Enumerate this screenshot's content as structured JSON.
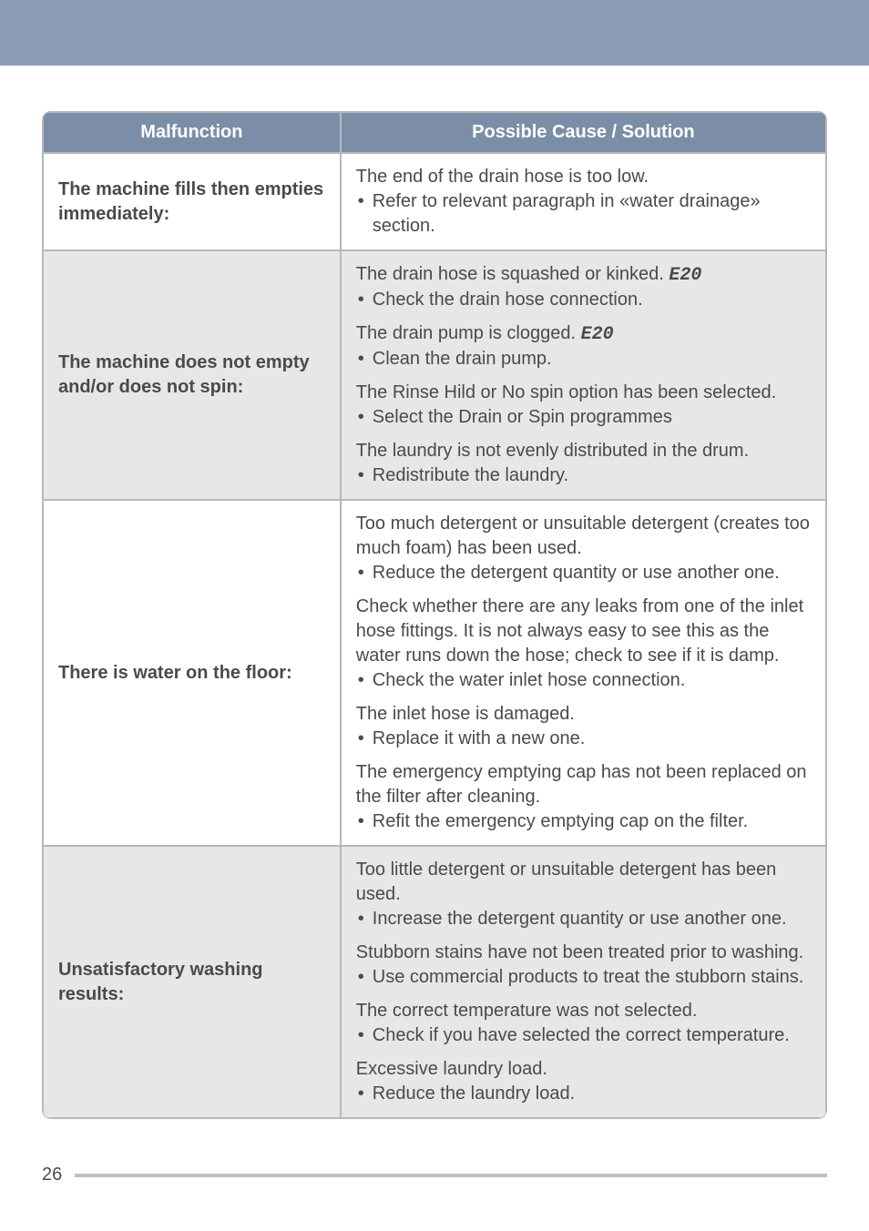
{
  "banner": {
    "bg_color": "#8a9bb5"
  },
  "table": {
    "header_bg": "#7c8da8",
    "header_text_color": "#ffffff",
    "border_color": "#b8b8b8",
    "row_alt_bg": "#e7e7e7",
    "text_color": "#4a4a4a",
    "font_size": 20,
    "headers": {
      "malfunction": "Malfunction",
      "solution": "Possible Cause / Solution"
    },
    "rows": [
      {
        "shaded": false,
        "malfunction": "The machine fills then empties immediately:",
        "blocks": [
          {
            "cause": "The end of the drain hose is too low.",
            "bullets": [
              "Refer to relevant paragraph in «water drainage» section."
            ]
          }
        ]
      },
      {
        "shaded": true,
        "malfunction": "The machine does not empty and/or does not spin:",
        "blocks": [
          {
            "cause_prefix": "The drain hose is squashed or kinked. ",
            "cause_code": "E20",
            "bullets": [
              "Check the drain hose connection."
            ]
          },
          {
            "cause_prefix": "The drain pump is clogged. ",
            "cause_code": "E20",
            "bullets": [
              "Clean the drain pump."
            ]
          },
          {
            "cause": "The Rinse Hild or No spin option has been selected.",
            "bullets": [
              "Select the Drain or Spin programmes"
            ]
          },
          {
            "cause": "The laundry is not evenly distributed in the drum.",
            "bullets": [
              "Redistribute the laundry."
            ]
          }
        ]
      },
      {
        "shaded": false,
        "malfunction": "There is water on the floor:",
        "blocks": [
          {
            "cause": "Too much detergent or unsuitable detergent (creates too much foam) has been used.",
            "bullets": [
              "Reduce the detergent quantity or use another one."
            ]
          },
          {
            "cause": "Check whether there are any leaks from one of the inlet hose fittings. It is not always easy to see this as the water runs down the hose; check to see if it is damp.",
            "bullets": [
              "Check the water inlet hose connection."
            ]
          },
          {
            "cause": "The inlet hose is damaged.",
            "bullets": [
              "Replace it with a new one."
            ]
          },
          {
            "cause": "The emergency emptying cap has not been replaced on the filter after cleaning.",
            "bullets": [
              "Refit the emergency emptying cap on the filter."
            ]
          }
        ]
      },
      {
        "shaded": true,
        "malfunction": "Unsatisfactory washing results:",
        "blocks": [
          {
            "cause": "Too little detergent or unsuitable detergent has been used.",
            "bullets": [
              "Increase the detergent quantity or use another one."
            ]
          },
          {
            "cause": "Stubborn stains have not been treated prior to washing.",
            "bullets": [
              "Use commercial products to treat the stubborn stains."
            ]
          },
          {
            "cause": "The correct temperature was not selected.",
            "bullets": [
              "Check if you have selected the correct temperature."
            ]
          },
          {
            "cause": "Excessive laundry load.",
            "bullets": [
              "Reduce the laundry load."
            ]
          }
        ]
      }
    ]
  },
  "footer": {
    "page_number": "26",
    "line_color": "#c0c0c0"
  }
}
